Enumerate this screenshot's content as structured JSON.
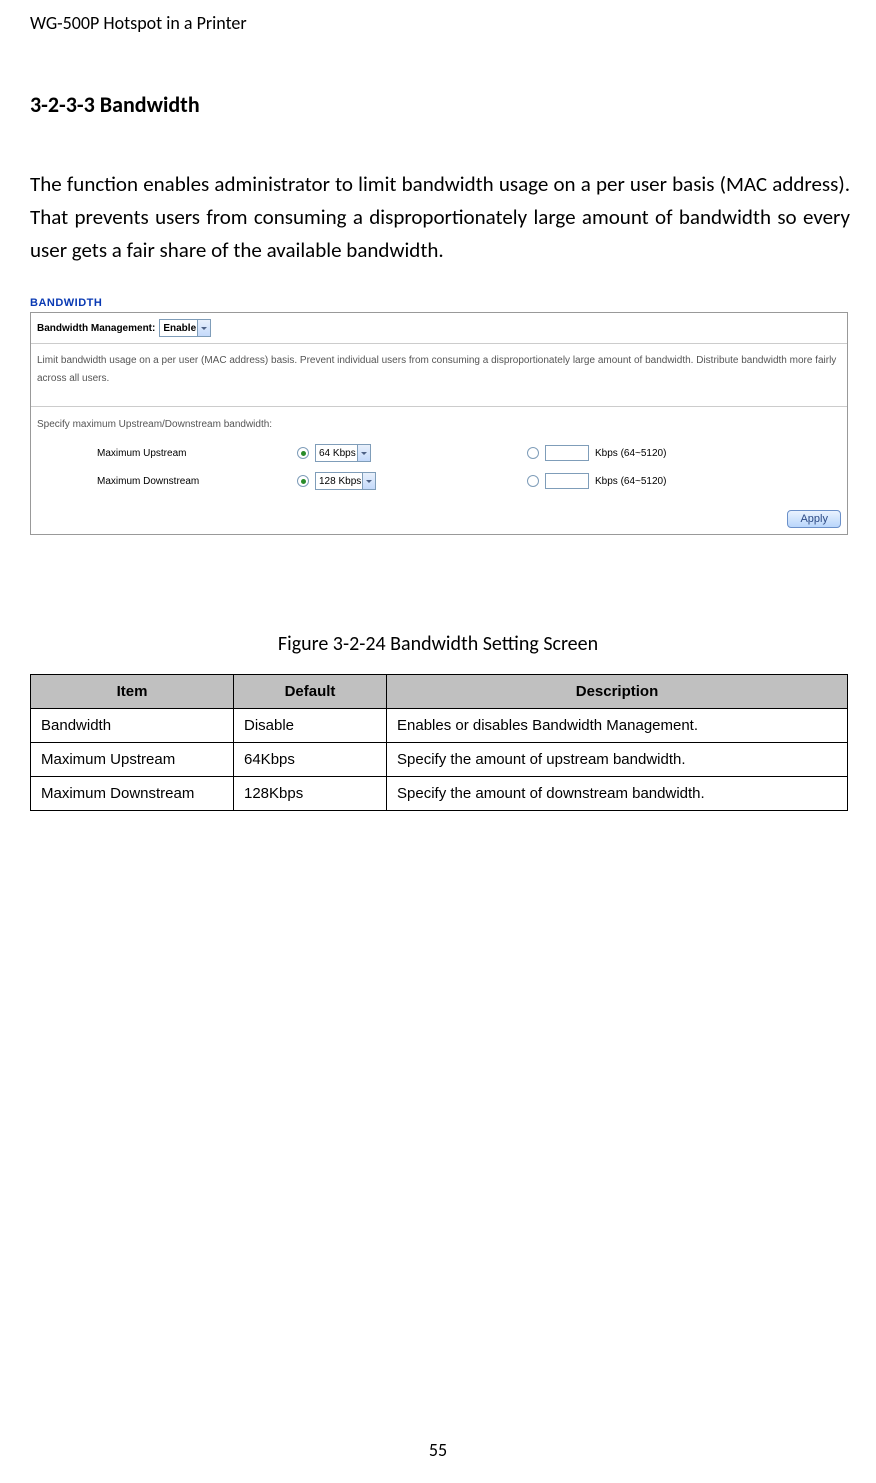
{
  "header": {
    "text": "WG-500P Hotspot in a Printer"
  },
  "section_heading": "3-2-3-3   Bandwidth",
  "intro_paragraph": "The function enables administrator to limit bandwidth usage on a per user basis (MAC address). That prevents users from consuming a disproportionately large amount of bandwidth so every user gets a fair share of the available bandwidth.",
  "panel": {
    "title": "BANDWIDTH",
    "management_label": "Bandwidth Management:",
    "management_value": "Enable",
    "description_text": "Limit bandwidth usage on a per user (MAC address) basis. Prevent individual users from consuming a disproportionately large amount of bandwidth. Distribute bandwidth more fairly across all users.",
    "spec_caption": "Specify maximum Upstream/Downstream bandwidth:",
    "rows": [
      {
        "label": "Maximum Upstream",
        "select_value": "64 Kbps",
        "range": "Kbps (64~5120)"
      },
      {
        "label": "Maximum Downstream",
        "select_value": "128 Kbps",
        "range": "Kbps (64~5120)"
      }
    ],
    "apply_label": "Apply"
  },
  "figure_caption": "Figure 3-2-24 Bandwidth Setting Screen",
  "table": {
    "headers": {
      "item": "Item",
      "default": "Default",
      "description": "Description"
    },
    "rows": [
      {
        "item": "Bandwidth",
        "default": "Disable",
        "desc": "Enables or disables Bandwidth Management."
      },
      {
        "item": "Maximum Upstream",
        "default": "64Kbps",
        "desc": "Specify the amount of upstream bandwidth."
      },
      {
        "item": "Maximum Downstream",
        "default": "128Kbps",
        "desc": "Specify the amount of downstream bandwidth."
      }
    ]
  },
  "page_number": "55",
  "colors": {
    "panel_title": "#0939b3",
    "table_header_bg": "#c0c0c0"
  }
}
